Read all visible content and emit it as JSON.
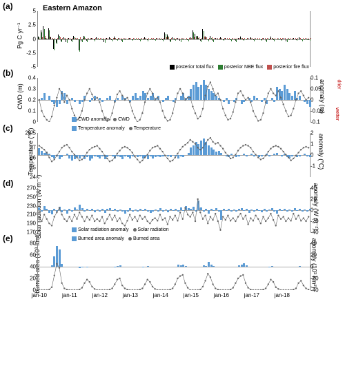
{
  "figure": {
    "region_title": "Eastern Amazon",
    "x_labels": [
      "jan-10",
      "jan-11",
      "jan-12",
      "jan-13",
      "jan-14",
      "jan-15",
      "jan-16",
      "jan-17",
      "jan-18"
    ],
    "n_months": 108,
    "colors": {
      "bar_blue": "#5b9bd5",
      "posterior_total": "#000000",
      "posterior_nbe": "#2e7d32",
      "posterior_fire": "#c0504d",
      "line_grey": "#666666",
      "grid": "#dddddd",
      "wetter_drier": "#c00000"
    }
  },
  "panels": {
    "a": {
      "label": "(a)",
      "height": 95,
      "y_left_label": "Pg C yr⁻¹",
      "y_left_ticks": [
        -5.0,
        -2.5,
        0.0,
        2.5,
        5.0
      ],
      "ylim": [
        -5.0,
        5.0
      ],
      "series": {
        "total": [
          0.4,
          1.5,
          2.3,
          0.2,
          1.9,
          0.3,
          -1.8,
          -0.7,
          0.8,
          -0.4,
          0.3,
          -0.5,
          0.2,
          -0.3,
          0.5,
          0.1,
          -2.0,
          -0.4,
          0.6,
          -0.3,
          0.1,
          0.2,
          -0.2,
          0.3,
          0.0,
          0.1,
          -0.5,
          0.2,
          0.3,
          -0.2,
          0.4,
          -0.1,
          0.2,
          -0.3,
          0.1,
          0.0,
          0.2,
          -0.1,
          0.1,
          0.0,
          -0.2,
          0.1,
          0.3,
          -0.2,
          0.0,
          0.1,
          -0.1,
          0.2,
          0.1,
          -0.2,
          1.2,
          0.8,
          -0.4,
          0.3,
          -0.1,
          0.2,
          -0.3,
          0.1,
          0.0,
          -0.2,
          0.3,
          1.5,
          0.9,
          0.5,
          -0.3,
          1.8,
          0.4,
          -0.2,
          0.5,
          -0.3,
          0.2,
          0.1,
          0.3,
          -0.1,
          0.2,
          0.0,
          -0.2,
          0.1,
          -0.3,
          0.2,
          0.4,
          -0.1,
          0.0,
          0.2,
          0.3,
          -0.2,
          0.1,
          0.0,
          -0.1,
          0.2,
          -0.3,
          0.1,
          0.4,
          -0.2,
          0.0,
          0.1,
          -0.1,
          0.2,
          -0.4,
          0.1,
          0.0,
          0.2,
          -0.1,
          0.3,
          -0.2,
          0.0,
          0.1,
          -0.1
        ],
        "nbe": [
          0.3,
          1.2,
          1.8,
          0.1,
          1.5,
          0.1,
          -2.0,
          -0.9,
          0.5,
          -0.6,
          0.1,
          -0.7,
          0.0,
          -0.5,
          0.3,
          -0.1,
          -2.3,
          -0.6,
          0.4,
          -0.5,
          -0.1,
          0.0,
          -0.4,
          0.1,
          -0.2,
          -0.1,
          -0.7,
          0.0,
          0.1,
          -0.4,
          0.2,
          -0.3,
          0.0,
          -0.5,
          -0.1,
          -0.2,
          0.0,
          -0.3,
          -0.1,
          -0.2,
          -0.4,
          -0.1,
          0.1,
          -0.4,
          -0.2,
          -0.1,
          -0.3,
          0.0,
          -0.1,
          -0.4,
          0.9,
          0.5,
          -0.6,
          0.1,
          -0.3,
          0.0,
          -0.5,
          -0.1,
          -0.2,
          -0.4,
          0.1,
          1.2,
          0.6,
          0.2,
          -0.5,
          1.4,
          0.1,
          -0.4,
          0.2,
          -0.5,
          0.0,
          -0.1,
          0.1,
          -0.3,
          0.0,
          -0.2,
          -0.4,
          -0.1,
          -0.5,
          0.0,
          0.2,
          -0.3,
          -0.2,
          0.0,
          0.1,
          -0.4,
          -0.1,
          -0.2,
          -0.3,
          0.0,
          -0.5,
          -0.1,
          0.2,
          -0.4,
          -0.2,
          -0.1,
          -0.3,
          0.0,
          -0.6,
          -0.1,
          -0.2,
          0.0,
          -0.3,
          0.1,
          -0.4,
          -0.2,
          -0.1,
          -0.3
        ],
        "fire": [
          0.1,
          0.3,
          0.5,
          0.1,
          0.4,
          0.2,
          0.2,
          0.2,
          0.3,
          0.2,
          0.2,
          0.2,
          0.2,
          0.2,
          0.2,
          0.2,
          0.3,
          0.2,
          0.2,
          0.2,
          0.2,
          0.2,
          0.2,
          0.2,
          0.2,
          0.2,
          0.2,
          0.2,
          0.2,
          0.2,
          0.2,
          0.2,
          0.2,
          0.2,
          0.2,
          0.2,
          0.2,
          0.2,
          0.2,
          0.2,
          0.2,
          0.2,
          0.2,
          0.2,
          0.2,
          0.2,
          0.2,
          0.2,
          0.2,
          0.2,
          0.3,
          0.3,
          0.2,
          0.2,
          0.2,
          0.2,
          0.2,
          0.2,
          0.2,
          0.2,
          0.2,
          0.3,
          0.3,
          0.3,
          0.2,
          0.4,
          0.3,
          0.2,
          0.3,
          0.2,
          0.2,
          0.2,
          0.2,
          0.2,
          0.2,
          0.2,
          0.2,
          0.2,
          0.2,
          0.2,
          0.2,
          0.2,
          0.2,
          0.2,
          0.2,
          0.2,
          0.2,
          0.2,
          0.2,
          0.2,
          0.2,
          0.2,
          0.2,
          0.2,
          0.2,
          0.2,
          0.2,
          0.2,
          0.2,
          0.2,
          0.2,
          0.2,
          0.2,
          0.2,
          0.2,
          0.2,
          0.2,
          0.2
        ]
      },
      "legend": [
        {
          "label": "posterior total flux",
          "color": "#000000"
        },
        {
          "label": "posterior NBE flux",
          "color": "#2e7d32"
        },
        {
          "label": "posterior fire flux",
          "color": "#c0504d"
        }
      ]
    },
    "b": {
      "label": "(b)",
      "height": 78,
      "y_left_label": "CWD (m)",
      "y_right_label": "anomaly (m)",
      "y_left_ticks": [
        0.0,
        0.1,
        0.2,
        0.3,
        0.4
      ],
      "y_right_ticks": [
        -0.1,
        -0.05,
        0.0,
        0.05,
        0.1
      ],
      "ylim_left": [
        0.0,
        0.4
      ],
      "ylim_right": [
        -0.1,
        0.1
      ],
      "wetter_label": "wetter",
      "drier_label": "drier",
      "bars": [
        0.0,
        0.01,
        0.03,
        0.0,
        0.02,
        -0.01,
        -0.02,
        -0.03,
        -0.02,
        0.04,
        0.03,
        -0.02,
        0.0,
        0.01,
        -0.01,
        0.0,
        -0.02,
        -0.01,
        0.02,
        0.0,
        -0.01,
        0.01,
        0.02,
        0.0,
        0.01,
        -0.01,
        0.0,
        0.01,
        0.02,
        0.0,
        -0.01,
        0.01,
        0.0,
        0.02,
        0.01,
        0.0,
        -0.01,
        0.02,
        0.03,
        0.01,
        0.02,
        0.04,
        0.03,
        0.01,
        0.02,
        0.03,
        0.01,
        0.02,
        0.0,
        -0.01,
        0.01,
        0.02,
        0.0,
        -0.01,
        0.01,
        0.0,
        0.02,
        0.03,
        0.01,
        0.02,
        0.05,
        0.07,
        0.08,
        0.06,
        0.07,
        0.09,
        0.07,
        0.05,
        0.04,
        0.03,
        0.02,
        0.01,
        0.0,
        -0.01,
        0.01,
        -0.02,
        0.0,
        -0.01,
        0.01,
        0.0,
        -0.02,
        -0.01,
        0.0,
        0.01,
        -0.01,
        0.02,
        0.01,
        0.0,
        -0.01,
        0.01,
        -0.02,
        0.0,
        0.01,
        -0.01,
        0.06,
        0.05,
        0.04,
        0.07,
        0.05,
        0.03,
        0.02,
        0.04,
        0.01,
        0.02,
        0.0,
        -0.01,
        -0.02,
        -0.03
      ],
      "line": [
        0.2,
        0.1,
        0.05,
        0.02,
        0.0,
        0.05,
        0.15,
        0.22,
        0.3,
        0.26,
        0.18,
        0.24,
        0.2,
        0.12,
        0.06,
        0.02,
        0.04,
        0.1,
        0.2,
        0.26,
        0.3,
        0.25,
        0.2,
        0.22,
        0.18,
        0.1,
        0.04,
        0.01,
        0.02,
        0.08,
        0.18,
        0.25,
        0.28,
        0.24,
        0.2,
        0.22,
        0.18,
        0.1,
        0.04,
        0.0,
        0.02,
        0.08,
        0.18,
        0.26,
        0.3,
        0.26,
        0.2,
        0.22,
        0.18,
        0.1,
        0.04,
        0.01,
        0.02,
        0.08,
        0.18,
        0.26,
        0.3,
        0.26,
        0.2,
        0.22,
        0.22,
        0.14,
        0.08,
        0.03,
        0.05,
        0.12,
        0.24,
        0.32,
        0.36,
        0.3,
        0.24,
        0.26,
        0.2,
        0.12,
        0.06,
        0.02,
        0.03,
        0.09,
        0.18,
        0.26,
        0.28,
        0.24,
        0.2,
        0.22,
        0.18,
        0.1,
        0.05,
        0.01,
        0.02,
        0.08,
        0.18,
        0.26,
        0.3,
        0.26,
        0.24,
        0.28,
        0.22,
        0.16,
        0.1,
        0.05,
        0.06,
        0.12,
        0.2,
        0.26,
        0.28,
        0.24,
        0.2,
        0.22
      ],
      "legend": [
        {
          "label": "CWD anomaly",
          "type": "bar"
        },
        {
          "label": "CWD",
          "type": "line"
        }
      ]
    },
    "c": {
      "label": "(c)",
      "height": 78,
      "y_left_label": "Temperature (°C)",
      "y_right_label": "anomaly (°C)",
      "y_left_ticks": [
        24.0,
        25.0,
        26.0,
        27.0,
        28.5
      ],
      "y_right_ticks": [
        -1.0,
        0.0,
        1.0,
        2.0
      ],
      "ylim_left": [
        24.0,
        28.5
      ],
      "ylim_right": [
        -2.0,
        2.0
      ],
      "bars": [
        0.6,
        0.4,
        0.2,
        0.3,
        0.1,
        -0.2,
        -0.3,
        -0.1,
        -0.4,
        -0.2,
        0.0,
        0.1,
        -0.3,
        -0.5,
        -0.4,
        -0.2,
        -0.3,
        -0.1,
        -0.4,
        -0.2,
        -0.5,
        -0.3,
        -0.1,
        -0.2,
        -0.3,
        -0.1,
        -0.4,
        -0.2,
        0.0,
        -0.1,
        -0.3,
        -0.1,
        -0.2,
        -0.4,
        -0.1,
        -0.2,
        -0.3,
        -0.1,
        0.0,
        -0.2,
        -0.1,
        -0.3,
        -0.2,
        -0.4,
        -0.1,
        -0.3,
        -0.2,
        -0.1,
        -0.2,
        -0.1,
        0.0,
        -0.1,
        -0.2,
        0.0,
        -0.1,
        -0.3,
        -0.1,
        -0.2,
        0.0,
        0.2,
        0.7,
        0.9,
        1.2,
        1.0,
        1.3,
        1.5,
        1.2,
        0.9,
        0.7,
        0.5,
        0.3,
        0.4,
        0.2,
        0.0,
        -0.1,
        -0.2,
        0.1,
        0.0,
        -0.2,
        -0.1,
        0.0,
        0.1,
        -0.1,
        0.0,
        0.1,
        -0.1,
        0.0,
        -0.2,
        -0.1,
        0.0,
        0.1,
        -0.1,
        0.0,
        0.1,
        0.2,
        0.0,
        -0.1,
        0.1,
        -0.2,
        -0.3,
        -0.1,
        0.0,
        -0.2,
        -0.1,
        0.0,
        0.1,
        -0.1,
        -0.2
      ],
      "line": [
        27.2,
        27.0,
        26.8,
        26.5,
        26.0,
        25.6,
        25.8,
        26.2,
        26.6,
        27.0,
        27.2,
        27.3,
        27.0,
        26.6,
        26.3,
        26.0,
        25.7,
        25.8,
        26.1,
        26.5,
        26.8,
        27.0,
        27.1,
        27.2,
        26.9,
        26.6,
        26.2,
        25.9,
        25.6,
        25.7,
        26.0,
        26.4,
        26.7,
        27.0,
        27.1,
        27.0,
        26.8,
        26.5,
        26.1,
        25.8,
        25.5,
        25.7,
        26.0,
        26.3,
        26.7,
        27.0,
        27.1,
        27.2,
        26.9,
        26.6,
        26.2,
        25.9,
        25.6,
        25.7,
        26.0,
        26.4,
        26.8,
        27.1,
        27.3,
        27.5,
        27.8,
        27.6,
        27.4,
        27.0,
        26.8,
        27.0,
        27.4,
        27.8,
        28.0,
        27.6,
        27.4,
        27.5,
        27.2,
        26.9,
        26.5,
        26.2,
        25.9,
        26.0,
        26.3,
        26.7,
        27.0,
        27.2,
        27.3,
        27.2,
        27.0,
        26.6,
        26.3,
        26.0,
        25.8,
        25.9,
        26.2,
        26.6,
        26.9,
        27.1,
        27.2,
        27.1,
        26.9,
        26.6,
        26.3,
        26.0,
        25.7,
        25.9,
        26.2,
        26.5,
        26.8,
        27.0,
        27.1,
        27.0
      ],
      "legend": [
        {
          "label": "Temperature anomaly",
          "type": "bar"
        },
        {
          "label": "Temperature",
          "type": "line"
        }
      ]
    },
    "d": {
      "label": "(d)",
      "height": 78,
      "y_left_label": "Solar radiation (W m⁻²)",
      "y_right_label": "anomaly (W m⁻²)",
      "y_left_ticks": [
        170,
        190,
        210,
        230,
        250,
        270
      ],
      "y_right_ticks": [
        -40,
        -20,
        0,
        20,
        40
      ],
      "ylim_left": [
        170,
        270
      ],
      "ylim_right": [
        -40,
        40
      ],
      "bars": [
        5,
        -3,
        8,
        2,
        -5,
        -8,
        3,
        -2,
        6,
        -4,
        1,
        -6,
        2,
        -3,
        5,
        1,
        10,
        4,
        -2,
        3,
        -1,
        2,
        -4,
        1,
        -2,
        3,
        -5,
        2,
        4,
        -1,
        3,
        -2,
        1,
        -3,
        -6,
        -2,
        4,
        -3,
        1,
        -2,
        3,
        -1,
        2,
        -3,
        -5,
        -2,
        1,
        -3,
        4,
        -2,
        1,
        -4,
        2,
        -1,
        3,
        -2,
        5,
        -1,
        8,
        4,
        2,
        6,
        -3,
        18,
        5,
        -2,
        3,
        -6,
        2,
        -1,
        4,
        -3,
        -18,
        2,
        -1,
        3,
        -2,
        1,
        -3,
        2,
        4,
        -1,
        3,
        -5,
        1,
        -2,
        3,
        -1,
        -4,
        2,
        -3,
        1,
        4,
        -2,
        -6,
        3,
        -1,
        2,
        -3,
        1,
        -2,
        4,
        -1,
        3,
        -2,
        1,
        -3,
        2
      ],
      "line": [
        205,
        195,
        210,
        200,
        190,
        185,
        205,
        215,
        225,
        210,
        200,
        195,
        205,
        195,
        210,
        200,
        215,
        205,
        195,
        205,
        198,
        208,
        195,
        200,
        195,
        205,
        190,
        200,
        210,
        198,
        208,
        195,
        202,
        190,
        185,
        196,
        210,
        198,
        205,
        195,
        208,
        200,
        205,
        195,
        190,
        198,
        202,
        196,
        210,
        198,
        202,
        188,
        205,
        198,
        208,
        196,
        215,
        200,
        225,
        210,
        205,
        215,
        195,
        245,
        215,
        200,
        208,
        190,
        205,
        198,
        212,
        195,
        175,
        205,
        198,
        208,
        196,
        202,
        195,
        205,
        212,
        200,
        208,
        188,
        202,
        196,
        208,
        200,
        190,
        205,
        195,
        202,
        212,
        198,
        185,
        208,
        200,
        205,
        195,
        202,
        196,
        212,
        200,
        208,
        196,
        202,
        195,
        205
      ],
      "legend": [
        {
          "label": "Solar radiation anomaly",
          "type": "bar"
        },
        {
          "label": "Solar radiation",
          "type": "line"
        }
      ]
    },
    "e": {
      "label": "(e)",
      "height": 82,
      "y_left_label": "burned area (10³ km²)",
      "y_right_label": "anomaly (10³ km²)",
      "y_left_ticks": [
        0,
        20,
        40,
        60,
        80
      ],
      "y_right_ticks": [
        -40,
        -20,
        0,
        20,
        40
      ],
      "ylim_left": [
        0,
        80
      ],
      "ylim_right": [
        -40,
        40
      ],
      "bars": [
        0,
        0,
        0,
        0,
        0,
        2,
        18,
        35,
        30,
        5,
        0,
        0,
        0,
        0,
        0,
        0,
        -2,
        -1,
        0,
        -1,
        0,
        0,
        0,
        0,
        0,
        0,
        0,
        0,
        0,
        0,
        -1,
        1,
        2,
        0,
        0,
        0,
        0,
        0,
        0,
        0,
        0,
        -1,
        0,
        1,
        0,
        0,
        0,
        0,
        0,
        0,
        0,
        0,
        0,
        0,
        0,
        3,
        2,
        4,
        1,
        0,
        0,
        0,
        0,
        0,
        0,
        2,
        1,
        8,
        4,
        1,
        0,
        0,
        0,
        0,
        0,
        0,
        0,
        0,
        0,
        2,
        4,
        6,
        2,
        0,
        0,
        0,
        0,
        0,
        0,
        0,
        0,
        -1,
        1,
        0,
        0,
        0,
        0,
        0,
        0,
        0,
        0,
        0,
        0,
        1,
        0,
        0,
        0,
        0
      ],
      "line": [
        0,
        0,
        0,
        0,
        1,
        5,
        25,
        45,
        38,
        12,
        3,
        1,
        0,
        0,
        0,
        0,
        1,
        4,
        12,
        18,
        14,
        6,
        2,
        0,
        0,
        0,
        0,
        0,
        1,
        3,
        10,
        18,
        20,
        8,
        3,
        1,
        0,
        0,
        0,
        0,
        1,
        3,
        10,
        18,
        14,
        6,
        2,
        0,
        0,
        0,
        0,
        0,
        1,
        3,
        10,
        20,
        24,
        26,
        12,
        4,
        0,
        0,
        0,
        0,
        1,
        6,
        16,
        28,
        22,
        10,
        3,
        1,
        0,
        0,
        0,
        0,
        1,
        4,
        12,
        20,
        24,
        26,
        12,
        4,
        1,
        0,
        0,
        0,
        0,
        1,
        3,
        10,
        18,
        14,
        5,
        2,
        0,
        0,
        0,
        0,
        0,
        1,
        3,
        12,
        16,
        8,
        3,
        1
      ],
      "legend": [
        {
          "label": "Burned area anomaly",
          "type": "bar"
        },
        {
          "label": "Burned area",
          "type": "line"
        }
      ]
    }
  }
}
